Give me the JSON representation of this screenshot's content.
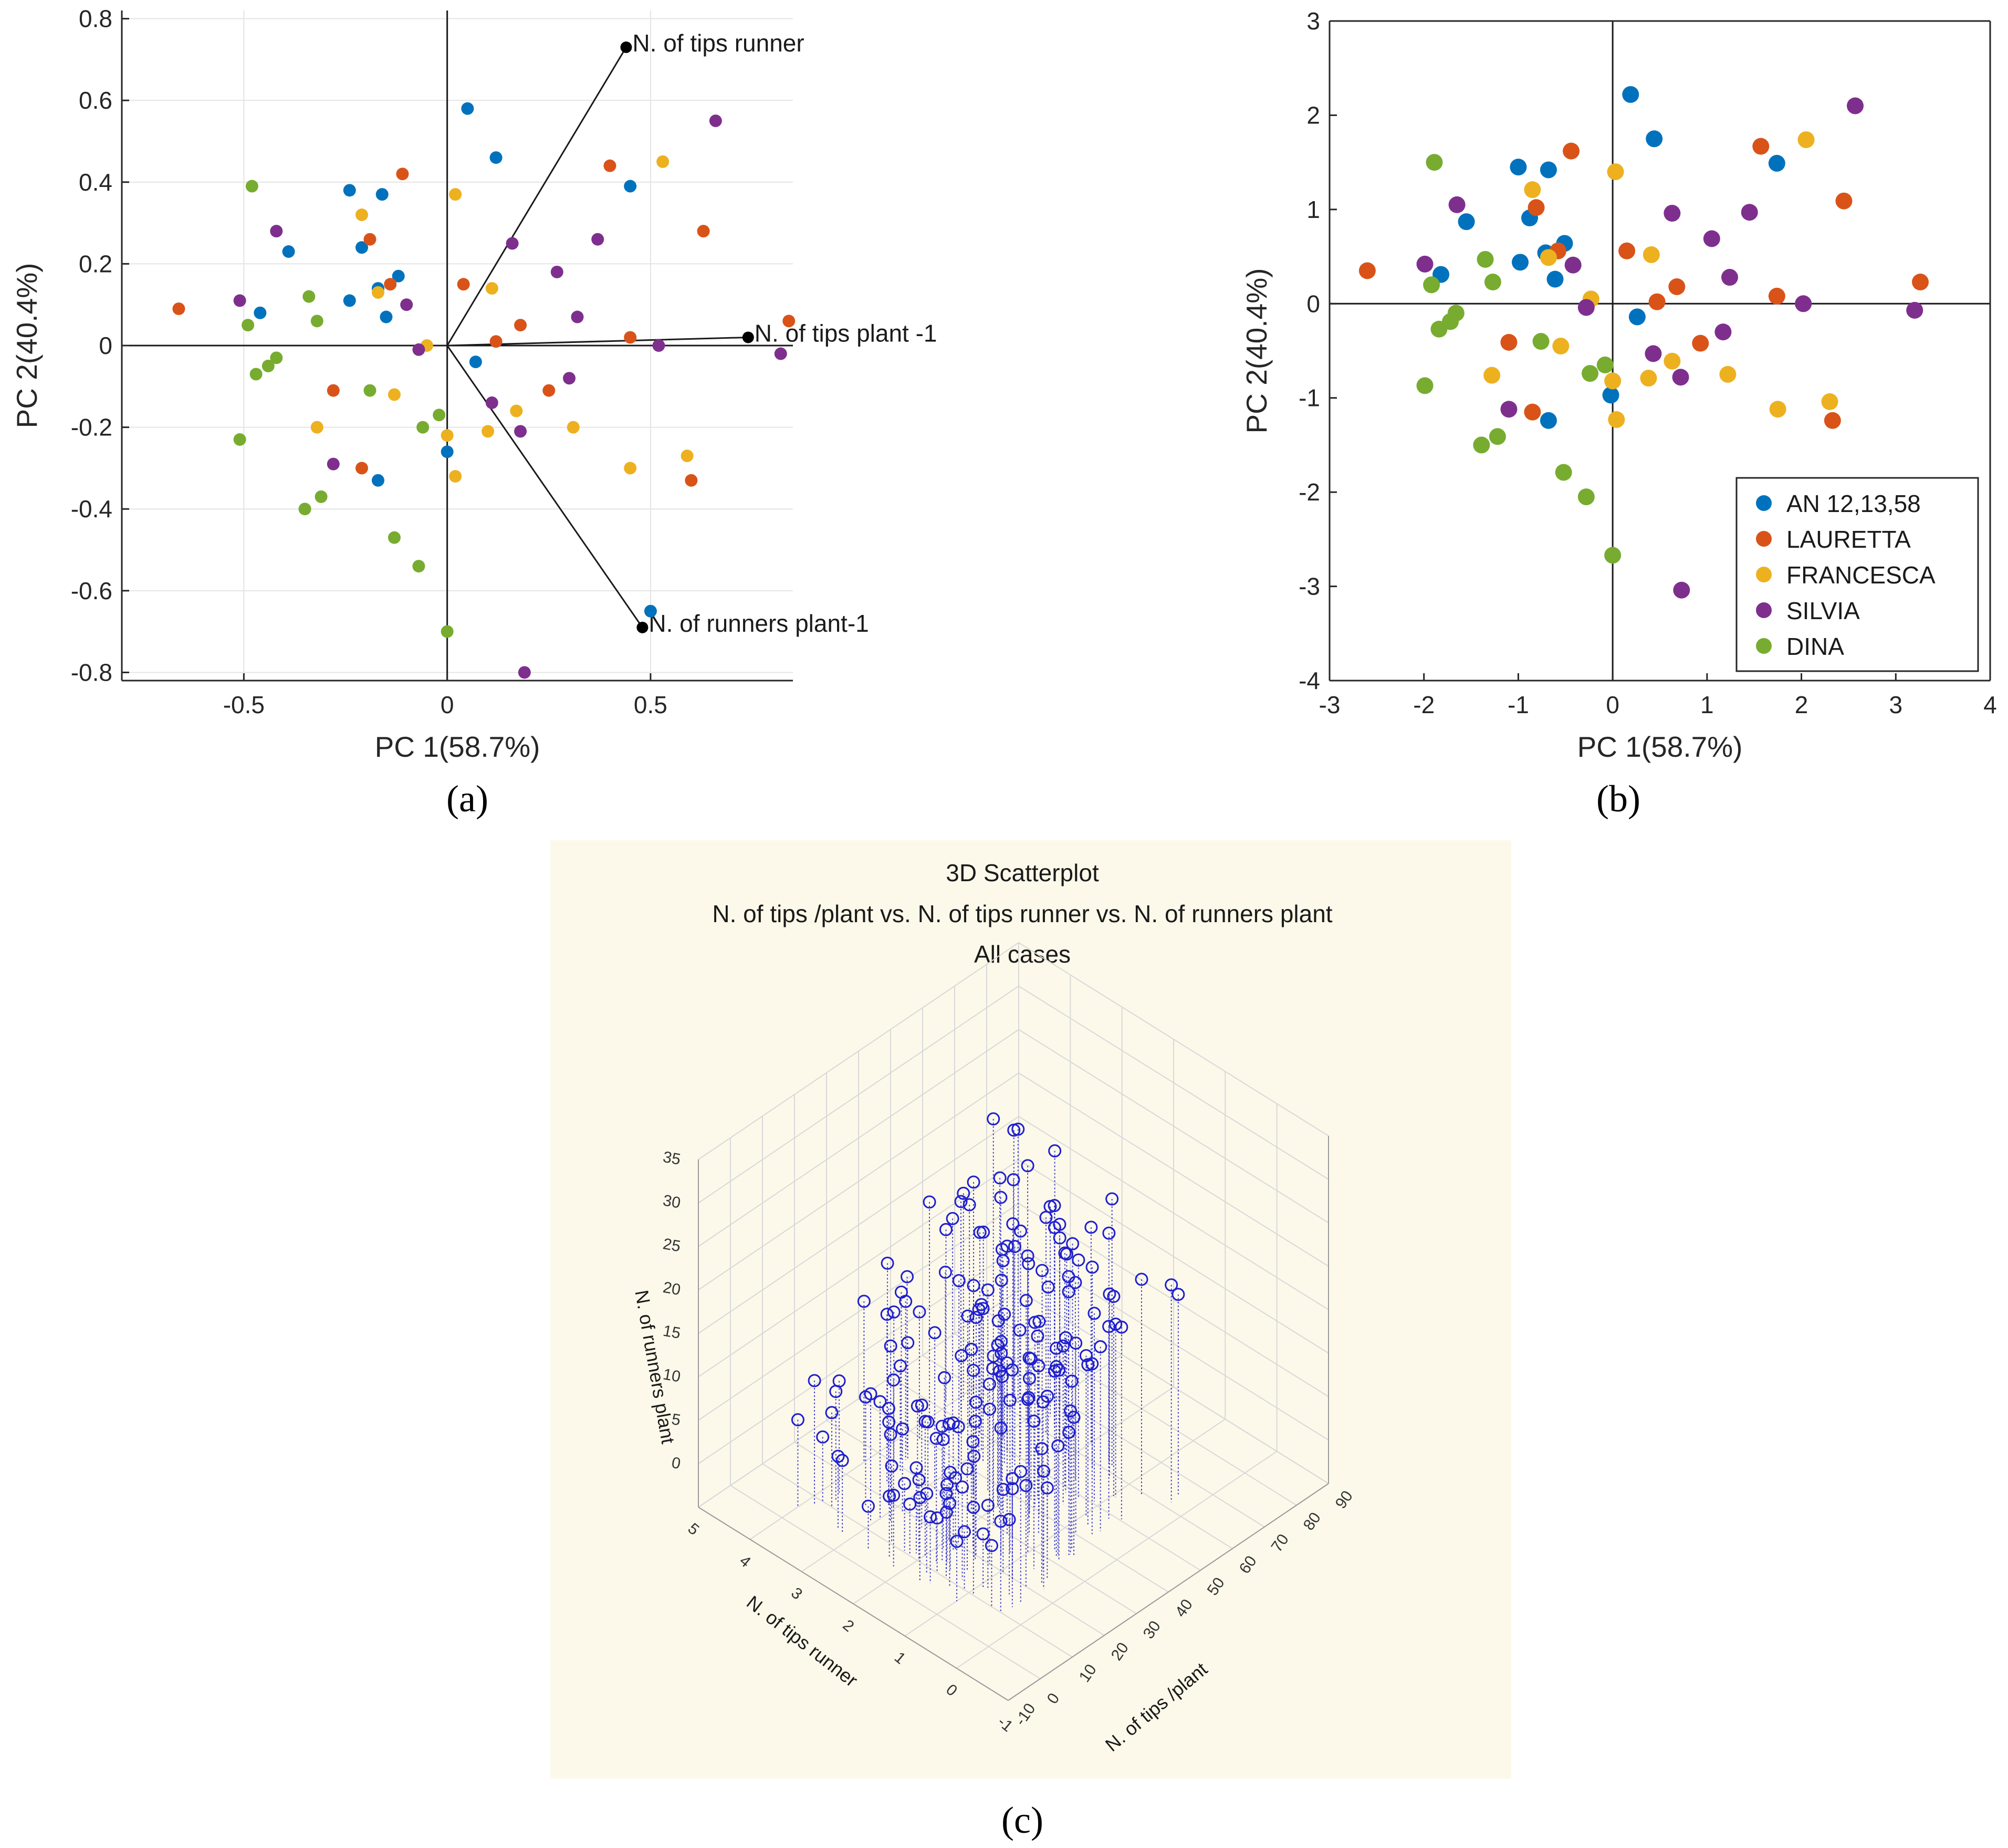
{
  "chart_data": [
    {
      "panel": "a",
      "type": "scatter",
      "subtype": "biplot",
      "xlabel": "PC 1(58.7%)",
      "ylabel": "PC 2(40.4%)",
      "xlim": [
        -0.8,
        0.85
      ],
      "ylim": [
        -0.82,
        0.82
      ],
      "xticks": [
        -0.5,
        0,
        0.5
      ],
      "xtick_labels": [
        "-0.5",
        "0",
        "0.5"
      ],
      "yticks": [
        -0.8,
        -0.6,
        -0.4,
        -0.2,
        0,
        0.2,
        0.4,
        0.6,
        0.8
      ],
      "ytick_labels": [
        "-0.8",
        "-0.6",
        "-0.4",
        "-0.2",
        "0",
        "0.2",
        "0.4",
        "0.6",
        "0.8"
      ],
      "grid": true,
      "panel_label": "(a)",
      "vectors": [
        {
          "name": "N. of tips runner",
          "x": 0.44,
          "y": 0.73
        },
        {
          "name": "N. of tips plant -1",
          "x": 0.74,
          "y": 0.02
        },
        {
          "name": "N. of runners plant-1",
          "x": 0.48,
          "y": -0.69
        }
      ],
      "series": [
        {
          "name": "AN 12,13,58",
          "color": "#0072BD",
          "points": [
            [
              0.05,
              0.58
            ],
            [
              0.12,
              0.46
            ],
            [
              -0.24,
              0.38
            ],
            [
              -0.16,
              0.37
            ],
            [
              0.45,
              0.39
            ],
            [
              -0.39,
              0.23
            ],
            [
              -0.21,
              0.24
            ],
            [
              -0.12,
              0.17
            ],
            [
              -0.17,
              0.14
            ],
            [
              -0.46,
              0.08
            ],
            [
              -0.24,
              0.11
            ],
            [
              -0.15,
              0.07
            ],
            [
              0.07,
              -0.04
            ],
            [
              0.0,
              -0.26
            ],
            [
              -0.17,
              -0.33
            ],
            [
              0.5,
              -0.65
            ]
          ]
        },
        {
          "name": "LAURETTA",
          "color": "#D95319",
          "points": [
            [
              -0.11,
              0.42
            ],
            [
              0.4,
              0.44
            ],
            [
              0.63,
              0.28
            ],
            [
              -0.19,
              0.26
            ],
            [
              0.04,
              0.15
            ],
            [
              -0.14,
              0.15
            ],
            [
              -0.66,
              0.09
            ],
            [
              0.84,
              0.06
            ],
            [
              0.18,
              0.05
            ],
            [
              0.12,
              0.01
            ],
            [
              0.45,
              0.02
            ],
            [
              -0.28,
              -0.11
            ],
            [
              0.25,
              -0.11
            ],
            [
              -0.21,
              -0.3
            ],
            [
              0.6,
              -0.33
            ]
          ]
        },
        {
          "name": "FRANCESCA",
          "color": "#EDB120",
          "points": [
            [
              0.53,
              0.45
            ],
            [
              0.02,
              0.37
            ],
            [
              -0.21,
              0.32
            ],
            [
              -0.17,
              0.13
            ],
            [
              0.11,
              0.14
            ],
            [
              -0.05,
              0.0
            ],
            [
              -0.13,
              -0.12
            ],
            [
              0.17,
              -0.16
            ],
            [
              -0.32,
              -0.2
            ],
            [
              0.31,
              -0.2
            ],
            [
              0.1,
              -0.21
            ],
            [
              0.0,
              -0.22
            ],
            [
              0.59,
              -0.27
            ],
            [
              0.45,
              -0.3
            ],
            [
              0.02,
              -0.32
            ]
          ]
        },
        {
          "name": "SILVIA",
          "color": "#7E2F8E",
          "points": [
            [
              0.66,
              0.55
            ],
            [
              0.16,
              0.25
            ],
            [
              0.37,
              0.26
            ],
            [
              -0.42,
              0.28
            ],
            [
              0.27,
              0.18
            ],
            [
              -0.51,
              0.11
            ],
            [
              -0.1,
              0.1
            ],
            [
              0.32,
              0.07
            ],
            [
              -0.07,
              -0.01
            ],
            [
              0.52,
              0.0
            ],
            [
              0.82,
              -0.02
            ],
            [
              0.3,
              -0.08
            ],
            [
              0.11,
              -0.14
            ],
            [
              0.18,
              -0.21
            ],
            [
              -0.28,
              -0.29
            ],
            [
              0.19,
              -0.8
            ]
          ]
        },
        {
          "name": "DINA",
          "color": "#77AC30",
          "points": [
            [
              -0.48,
              0.39
            ],
            [
              -0.34,
              0.12
            ],
            [
              -0.32,
              0.06
            ],
            [
              -0.49,
              0.05
            ],
            [
              -0.44,
              -0.05
            ],
            [
              -0.47,
              -0.07
            ],
            [
              -0.42,
              -0.03
            ],
            [
              -0.19,
              -0.11
            ],
            [
              -0.02,
              -0.17
            ],
            [
              -0.06,
              -0.2
            ],
            [
              -0.51,
              -0.23
            ],
            [
              -0.31,
              -0.37
            ],
            [
              -0.35,
              -0.4
            ],
            [
              -0.13,
              -0.47
            ],
            [
              -0.07,
              -0.54
            ],
            [
              0.0,
              -0.7
            ]
          ]
        }
      ]
    },
    {
      "panel": "b",
      "type": "scatter",
      "xlabel": "PC 1(58.7%)",
      "ylabel": "PC 2(40.4%)",
      "xlim": [
        -3,
        4
      ],
      "ylim": [
        -4,
        3
      ],
      "xticks": [
        -3,
        -2,
        -1,
        0,
        1,
        2,
        3,
        4
      ],
      "xtick_labels": [
        "-3",
        "-2",
        "-1",
        "0",
        "1",
        "2",
        "3",
        "4"
      ],
      "yticks": [
        -4,
        -3,
        -2,
        -1,
        0,
        1,
        2,
        3
      ],
      "ytick_labels": [
        "-4",
        "-3",
        "-2",
        "-1",
        "0",
        "1",
        "2",
        "3"
      ],
      "grid": false,
      "legend_position": "bottom-right",
      "panel_label": "(b)",
      "series": [
        {
          "name": "AN 12,13,58",
          "color": "#0072BD",
          "points": [
            [
              0.19,
              2.22
            ],
            [
              0.44,
              1.75
            ],
            [
              1.74,
              1.49
            ],
            [
              -1.0,
              1.45
            ],
            [
              -0.68,
              1.42
            ],
            [
              -0.88,
              0.91
            ],
            [
              -1.55,
              0.87
            ],
            [
              -0.71,
              0.54
            ],
            [
              -0.51,
              0.64
            ],
            [
              -0.98,
              0.44
            ],
            [
              -0.61,
              0.26
            ],
            [
              -1.82,
              0.31
            ],
            [
              0.26,
              -0.14
            ],
            [
              -0.68,
              -1.24
            ],
            [
              -0.02,
              -0.97
            ]
          ]
        },
        {
          "name": "LAURETTA",
          "color": "#D95319",
          "points": [
            [
              -0.44,
              1.62
            ],
            [
              1.57,
              1.67
            ],
            [
              2.45,
              1.09
            ],
            [
              -0.81,
              1.02
            ],
            [
              -0.58,
              0.56
            ],
            [
              0.15,
              0.56
            ],
            [
              -2.6,
              0.35
            ],
            [
              3.26,
              0.23
            ],
            [
              0.68,
              0.18
            ],
            [
              0.47,
              0.02
            ],
            [
              1.74,
              0.08
            ],
            [
              -1.1,
              -0.41
            ],
            [
              0.93,
              -0.42
            ],
            [
              -0.85,
              -1.15
            ],
            [
              2.33,
              -1.24
            ]
          ]
        },
        {
          "name": "FRANCESCA",
          "color": "#EDB120",
          "points": [
            [
              2.05,
              1.74
            ],
            [
              0.03,
              1.4
            ],
            [
              -0.85,
              1.21
            ],
            [
              -0.68,
              0.49
            ],
            [
              0.41,
              0.52
            ],
            [
              -0.23,
              0.05
            ],
            [
              -0.55,
              -0.45
            ],
            [
              0.63,
              -0.61
            ],
            [
              -1.28,
              -0.76
            ],
            [
              1.22,
              -0.75
            ],
            [
              0.38,
              -0.79
            ],
            [
              0.0,
              -0.82
            ],
            [
              2.3,
              -1.04
            ],
            [
              1.75,
              -1.12
            ],
            [
              0.04,
              -1.23
            ]
          ]
        },
        {
          "name": "SILVIA",
          "color": "#7E2F8E",
          "points": [
            [
              2.57,
              2.1
            ],
            [
              0.63,
              0.96
            ],
            [
              1.45,
              0.97
            ],
            [
              -1.65,
              1.05
            ],
            [
              1.05,
              0.69
            ],
            [
              -1.99,
              0.42
            ],
            [
              -0.42,
              0.41
            ],
            [
              1.24,
              0.28
            ],
            [
              -0.28,
              -0.04
            ],
            [
              2.02,
              0.0
            ],
            [
              3.2,
              -0.07
            ],
            [
              1.17,
              -0.3
            ],
            [
              0.43,
              -0.53
            ],
            [
              0.72,
              -0.78
            ],
            [
              -1.1,
              -1.12
            ],
            [
              0.73,
              -3.04
            ]
          ]
        },
        {
          "name": "DINA",
          "color": "#77AC30",
          "points": [
            [
              -1.89,
              1.5
            ],
            [
              -1.35,
              0.47
            ],
            [
              -1.27,
              0.23
            ],
            [
              -1.92,
              0.2
            ],
            [
              -1.72,
              -0.19
            ],
            [
              -1.84,
              -0.27
            ],
            [
              -1.66,
              -0.1
            ],
            [
              -0.76,
              -0.4
            ],
            [
              -0.08,
              -0.65
            ],
            [
              -0.24,
              -0.74
            ],
            [
              -1.99,
              -0.87
            ],
            [
              -1.22,
              -1.41
            ],
            [
              -1.39,
              -1.5
            ],
            [
              -0.52,
              -1.79
            ],
            [
              -0.28,
              -2.05
            ],
            [
              0.0,
              -2.67
            ]
          ]
        }
      ]
    },
    {
      "panel": "c",
      "type": "scatter3d",
      "title": "3D Scatterplot",
      "subtitle": "N. of tips /plant vs.  N. of tips runner vs.  N. of runners plant",
      "subtitle2": "All cases",
      "xlabel": "N. of tips /plant",
      "ylabel": "N. of tips runner",
      "zlabel": "N. of runners plant",
      "xlim": [
        -10,
        90
      ],
      "ylim": [
        -1,
        5
      ],
      "zlim": [
        -5,
        35
      ],
      "xtick_labels": [
        "-10",
        "0",
        "10",
        "20",
        "30",
        "40",
        "50",
        "60",
        "70",
        "80",
        "90"
      ],
      "ytick_labels": [
        "-1",
        "0",
        "1",
        "2",
        "3",
        "4",
        "5"
      ],
      "ztick_labels": [
        "0",
        "5",
        "10",
        "15",
        "20",
        "25",
        "30",
        "35"
      ],
      "color": "#1f1fd0",
      "panel_label": "(c)",
      "marker_count": 190,
      "background": "#fdf9ea"
    }
  ]
}
